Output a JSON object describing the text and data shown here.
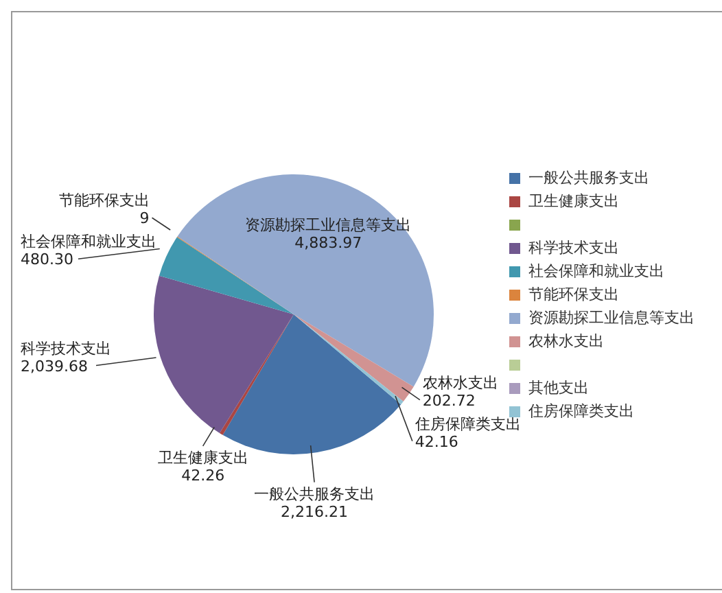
{
  "chart_data": {
    "type": "pie",
    "categories": [
      "一般公共服务支出",
      "卫生健康支出",
      null,
      "科学技术支出",
      "社会保障和就业支出",
      "节能环保支出",
      "资源勘探工业信息等支出",
      "农林水支出",
      null,
      "其他支出",
      "住房保障类支出"
    ],
    "values": [
      2216.21,
      42.26,
      0,
      2039.68,
      480.3,
      9,
      4883.97,
      202.72,
      0,
      0,
      42.16
    ],
    "value_labels": [
      "2,216.21",
      "42.26",
      null,
      "2,039.68",
      "480.30",
      "9",
      "4,883.97",
      "202.72",
      null,
      null,
      "42.16"
    ],
    "colors": [
      "#4572a7",
      "#aa4643",
      "#89a54e",
      "#71588f",
      "#4198af",
      "#db843d",
      "#93a9cf",
      "#d19392",
      "#b9cd96",
      "#a99bbd",
      "#92c3d4"
    ],
    "legend": "right"
  }
}
